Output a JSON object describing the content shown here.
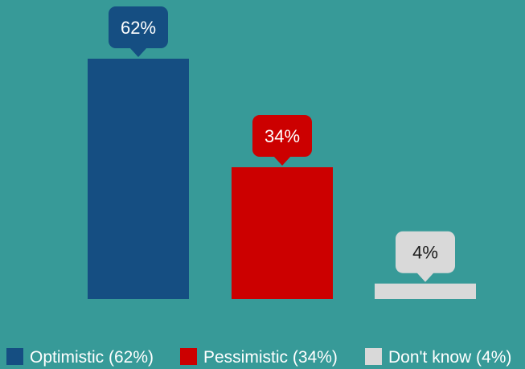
{
  "background_color": "#379A98",
  "chart_data": {
    "type": "bar",
    "title": "",
    "xlabel": "",
    "ylabel": "",
    "grid": false,
    "legend_position": "bottom",
    "ylim": [
      0,
      62
    ],
    "categories": [
      "Optimistic",
      "Pessimistic",
      "Don't know"
    ],
    "values": [
      62,
      34,
      4
    ],
    "data_labels": [
      "62%",
      "34%",
      "4%"
    ],
    "colors": [
      "#154E82",
      "#CC0000",
      "#D9D9D9"
    ],
    "label_text_colors": [
      "#FFFFFF",
      "#FFFFFF",
      "#1A1A1A"
    ],
    "legend": [
      {
        "label": "Optimistic (62%)",
        "color": "#154E82"
      },
      {
        "label": "Pessimistic (34%)",
        "color": "#CC0000"
      },
      {
        "label": "Don't know (4%)",
        "color": "#D9D9D9"
      }
    ],
    "legend_text_color": "#FFFFFF"
  }
}
